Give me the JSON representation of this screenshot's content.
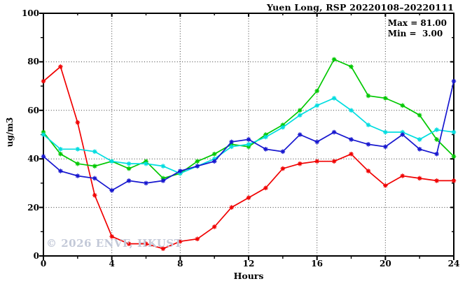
{
  "chart_data": {
    "type": "line",
    "title": "Yuen Long, RSP 20220108–20220111",
    "stats": {
      "max_label": "Max = 81.00",
      "min_label": "Min =  3.00"
    },
    "xlabel": "Hours",
    "ylabel": "ug/m3",
    "watermark": "© 2026 ENVF, HKUST",
    "xlim": [
      0,
      24
    ],
    "ylim": [
      0,
      100
    ],
    "xticks_major": [
      0,
      4,
      8,
      12,
      16,
      20,
      24
    ],
    "xticks_minor": [
      2,
      6,
      10,
      14,
      18,
      22
    ],
    "yticks_major": [
      0,
      20,
      40,
      60,
      80,
      100
    ],
    "yticks_minor": [
      10,
      30,
      50,
      70,
      90
    ],
    "grid_x": [
      4,
      8,
      12,
      16,
      20
    ],
    "grid_y": [
      20,
      40,
      60,
      80
    ],
    "grid_style": "dotted",
    "x": [
      0,
      1,
      2,
      3,
      4,
      5,
      6,
      7,
      8,
      9,
      10,
      11,
      12,
      13,
      14,
      15,
      16,
      17,
      18,
      19,
      20,
      21,
      22,
      23,
      24
    ],
    "series": [
      {
        "name": "red-day",
        "color": "#f00000",
        "values": [
          72,
          78,
          55,
          25,
          8,
          5,
          5,
          3,
          6,
          7,
          12,
          20,
          24,
          28,
          36,
          38,
          39,
          39,
          42,
          35,
          29,
          33,
          32,
          31,
          31
        ]
      },
      {
        "name": "green-day",
        "color": "#00c800",
        "values": [
          51,
          42,
          38,
          37,
          39,
          36,
          39,
          32,
          34,
          39,
          42,
          46,
          45,
          50,
          54,
          60,
          68,
          81,
          78,
          66,
          65,
          62,
          58,
          48,
          41
        ]
      },
      {
        "name": "cyan-day",
        "color": "#00dde0",
        "values": [
          50,
          44,
          44,
          43,
          39,
          38,
          38,
          37,
          34,
          37,
          40,
          45,
          46,
          49,
          53,
          58,
          62,
          65,
          60,
          54,
          51,
          51,
          48,
          52,
          51
        ]
      },
      {
        "name": "blue-day",
        "color": "#1717cf",
        "values": [
          41,
          35,
          33,
          32,
          27,
          31,
          30,
          31,
          35,
          37,
          39,
          47,
          48,
          44,
          43,
          50,
          47,
          51,
          48,
          46,
          45,
          50,
          44,
          42,
          72
        ]
      }
    ],
    "frame_color": "#000000",
    "marker": "asterisk"
  }
}
